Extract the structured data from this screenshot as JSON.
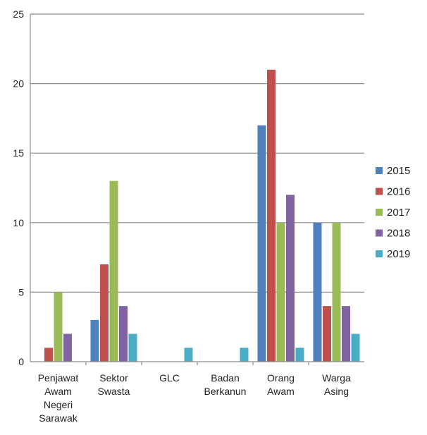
{
  "chart_data": {
    "type": "bar",
    "categories": [
      [
        "Penjawat",
        "Awam",
        "Negeri",
        "Sarawak"
      ],
      [
        "Sektor",
        "Swasta"
      ],
      [
        "GLC"
      ],
      [
        "Badan",
        "Berkanun"
      ],
      [
        "Orang",
        "Awam"
      ],
      [
        "Warga",
        "Asing"
      ]
    ],
    "series": [
      {
        "name": "2015",
        "color": "#4f81bd",
        "values": [
          0,
          3,
          0,
          0,
          17,
          10
        ]
      },
      {
        "name": "2016",
        "color": "#c0504d",
        "values": [
          1,
          7,
          0,
          0,
          21,
          4
        ]
      },
      {
        "name": "2017",
        "color": "#9bbb59",
        "values": [
          5,
          13,
          0,
          0,
          10,
          10
        ]
      },
      {
        "name": "2018",
        "color": "#8064a2",
        "values": [
          2,
          4,
          0,
          0,
          12,
          4
        ]
      },
      {
        "name": "2019",
        "color": "#4bacc6",
        "values": [
          0,
          2,
          1,
          1,
          1,
          2
        ]
      }
    ],
    "ylim": [
      0,
      25
    ],
    "yticks": [
      0,
      5,
      10,
      15,
      20,
      25
    ],
    "grid": true,
    "legend": "right"
  }
}
